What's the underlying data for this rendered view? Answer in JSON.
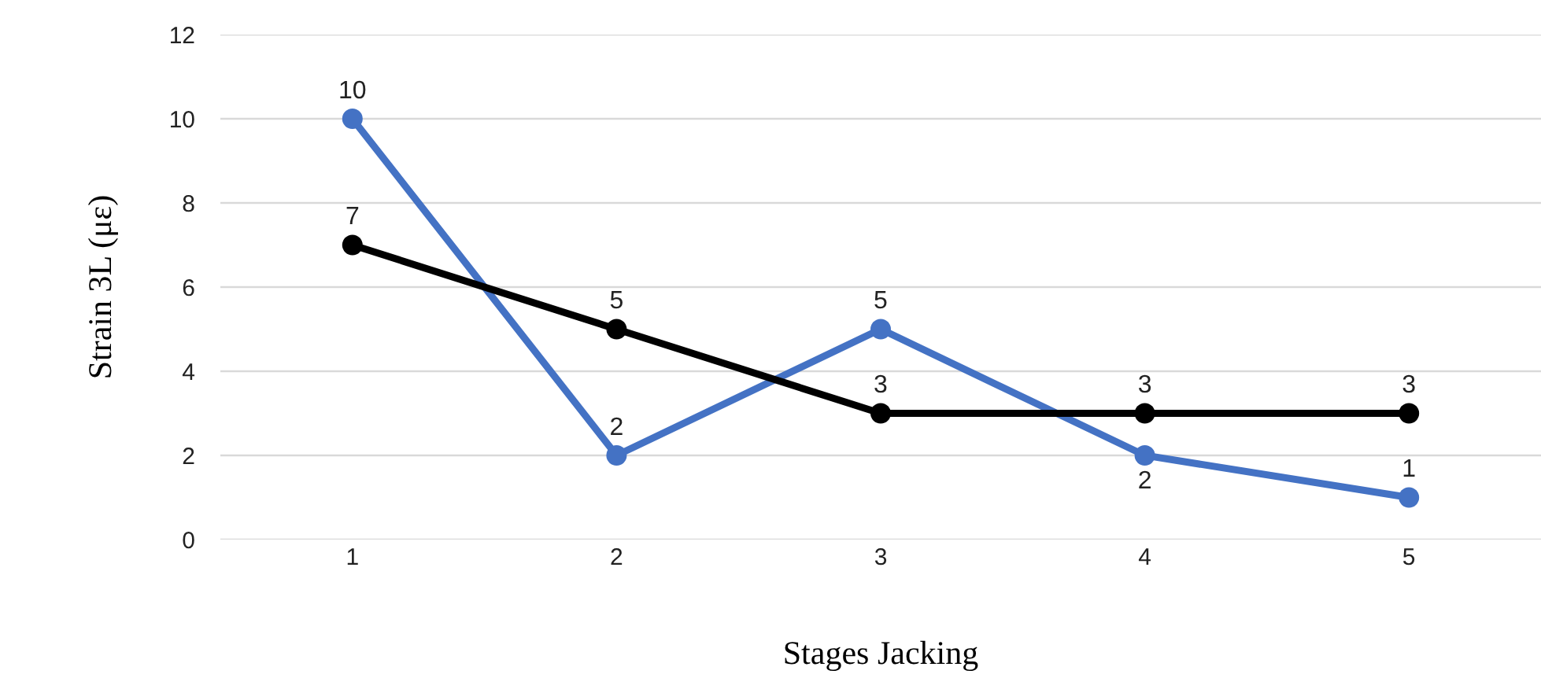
{
  "chart_data": {
    "type": "line",
    "xlabel": "Stages Jacking",
    "ylabel": "Strain 3L (με)",
    "categories": [
      "1",
      "2",
      "3",
      "4",
      "5"
    ],
    "series": [
      {
        "color": "#4472c4",
        "values": [
          10,
          2,
          5,
          2,
          1
        ]
      },
      {
        "color": "#000000",
        "values": [
          7,
          5,
          3,
          3,
          3
        ]
      }
    ],
    "ylim": [
      0,
      12
    ],
    "yticks": [
      0,
      2,
      4,
      6,
      8,
      10,
      12
    ],
    "grid": "y",
    "marker": "circle",
    "line_style": "solid",
    "data_labels": true
  }
}
